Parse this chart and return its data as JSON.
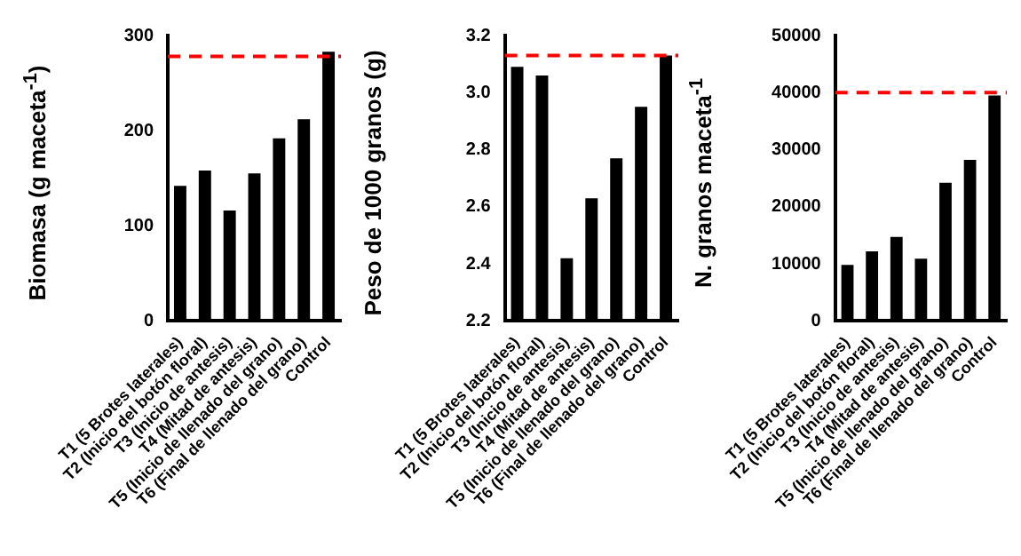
{
  "chart_data": [
    {
      "type": "bar",
      "ylabel": "Biomasa (g maceta$^{-1}$)",
      "categories": [
        "T1 (5 Brotes laterales)",
        "T2 (Inicio del botón floral)",
        "T3 (Inicio de antesis)",
        "T4 (Mitad de antesis)",
        "T5 (Inicio de llenado del grano)",
        "T6 (Final de llenado del grano)",
        "Control"
      ],
      "values": [
        142,
        158,
        116,
        155,
        192,
        212,
        283
      ],
      "color": "#000000",
      "ylim": [
        0,
        300
      ],
      "yticks": [
        0,
        100,
        200,
        300
      ],
      "ref_lines": [
        {
          "axis": "y",
          "value": 278,
          "color": "#ff0000",
          "line_style": "dashed"
        }
      ]
    },
    {
      "type": "bar",
      "ylabel": "Peso de 1000 granos (g)",
      "categories": [
        "T1 (5 Brotes laterales)",
        "T2 (Inicio del botón floral)",
        "T3 (Inicio de antesis)",
        "T4 (Mitad de antesis)",
        "T5 (Inicio de llenado del grano)",
        "T6 (Final de llenado del grano)",
        "Control"
      ],
      "values": [
        3.09,
        3.06,
        2.42,
        2.63,
        2.77,
        2.95,
        3.13
      ],
      "color": "#000000",
      "ylim": [
        2.2,
        3.2
      ],
      "yticks": [
        {
          "value": 2.2,
          "label": "2.2"
        },
        {
          "value": 2.4,
          "label": "2.4"
        },
        {
          "value": 2.6,
          "label": "2.6"
        },
        {
          "value": 2.8,
          "label": "2.8"
        },
        {
          "value": 3.0,
          "label": "3.0"
        },
        {
          "value": 3.2,
          "label": "3.2"
        }
      ],
      "ref_lines": [
        {
          "axis": "y",
          "value": 3.13,
          "color": "#ff0000",
          "line_style": "dashed"
        }
      ]
    },
    {
      "type": "bar",
      "ylabel": "N. granos maceta$^{-1}$",
      "categories": [
        "T1 (5 Brotes laterales)",
        "T2 (Inicio del botón floral)",
        "T3 (Inicio de antesis)",
        "T4 (Mitad de antesis)",
        "T5 (Inicio de llenado del grano)",
        "T6 (Final de llenado del grano)",
        "Control"
      ],
      "values": [
        9800,
        12200,
        14700,
        10900,
        24200,
        28200,
        39500
      ],
      "color": "#000000",
      "ylim": [
        0,
        50000
      ],
      "yticks": [
        0,
        10000,
        20000,
        30000,
        40000,
        50000
      ],
      "ref_lines": [
        {
          "axis": "y",
          "value": 40000,
          "color": "#ff0000",
          "line_style": "dashed"
        }
      ]
    }
  ]
}
